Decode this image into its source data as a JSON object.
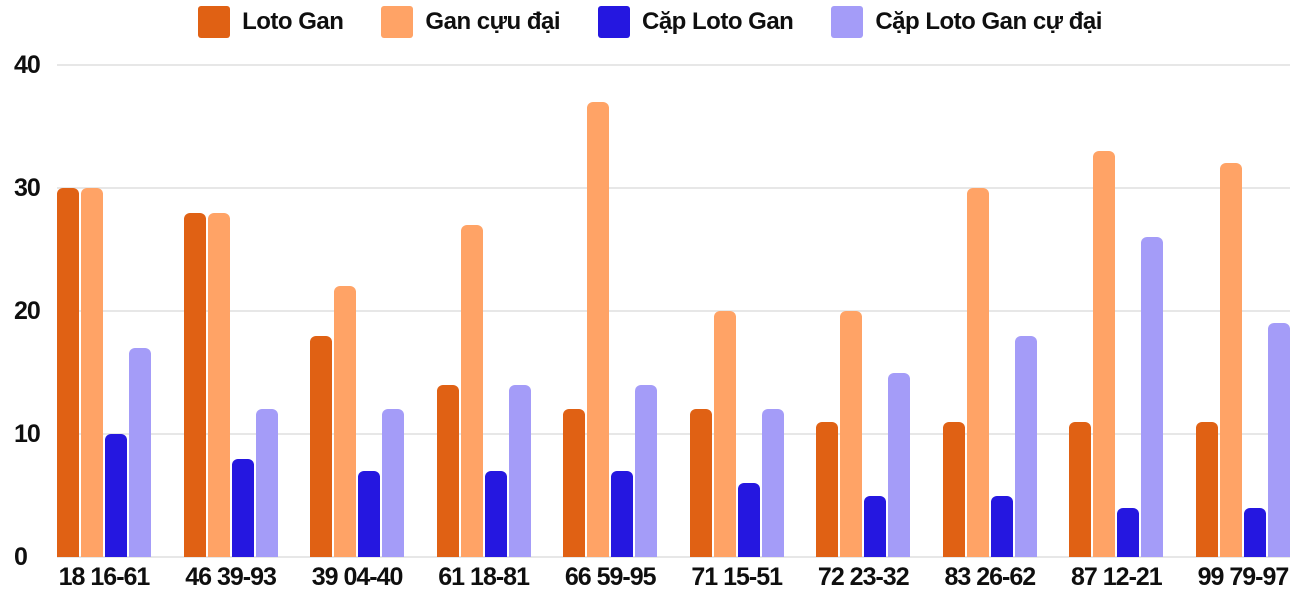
{
  "chart_data": {
    "type": "bar",
    "title": "",
    "xlabel": "",
    "ylabel": "",
    "categories": [
      "18 16-61",
      "46 39-93",
      "39 04-40",
      "61 18-81",
      "66 59-95",
      "71 15-51",
      "72 23-32",
      "83 26-62",
      "87 12-21",
      "99 79-97"
    ],
    "series": [
      {
        "name": "Loto Gan",
        "color": "#e06114",
        "values": [
          30,
          28,
          18,
          14,
          12,
          12,
          11,
          11,
          11,
          11
        ]
      },
      {
        "name": "Gan cựu đại",
        "color": "#ffa366",
        "values": [
          30,
          28,
          22,
          27,
          37,
          20,
          20,
          30,
          33,
          32
        ]
      },
      {
        "name": "Cặp Loto Gan",
        "color": "#2517e0",
        "values": [
          10,
          8,
          7,
          7,
          7,
          6,
          5,
          5,
          4,
          4
        ]
      },
      {
        "name": "Cặp Loto Gan cự đại",
        "color": "#a49cf8",
        "values": [
          17,
          12,
          12,
          14,
          14,
          12,
          15,
          18,
          26,
          19
        ]
      }
    ],
    "ylim": [
      0,
      40
    ],
    "yticks": [
      0,
      10,
      20,
      30,
      40
    ],
    "grid": true,
    "legend_position": "top",
    "colors": {
      "gridline": "#e7e7e7",
      "text": "#0f0f0f",
      "background": "#ffffff"
    }
  }
}
